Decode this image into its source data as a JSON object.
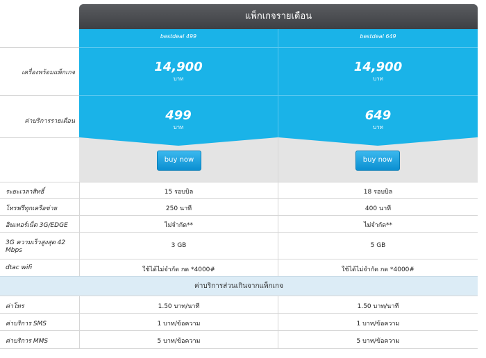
{
  "header": {
    "title": "แพ็กเกจรายเดือน"
  },
  "plans": [
    {
      "name": "bestdeal 499",
      "device_price": "14,900",
      "device_unit": "บาท",
      "monthly_price": "499",
      "monthly_unit": "บาท",
      "button": "buy now"
    },
    {
      "name": "bestdeal 649",
      "device_price": "14,900",
      "device_unit": "บาท",
      "monthly_price": "649",
      "monthly_unit": "บาท",
      "button": "buy now"
    }
  ],
  "labels": {
    "device_package": "เครื่องพร้อมแพ็กเกจ",
    "monthly_fee": "ค่าบริการรายเดือน"
  },
  "rows": [
    {
      "label": "ระยะเวลาสิทธิ์",
      "v1": "15 รอบบิล",
      "v2": "18 รอบบิล"
    },
    {
      "label": "โทรฟรีทุกเครือข่าย",
      "v1": "250 นาที",
      "v2": "400 นาที"
    },
    {
      "label": "อินเทอร์เน็ต 3G/EDGE",
      "v1": "ไม่จำกัด**",
      "v2": "ไม่จำกัด**"
    },
    {
      "label": "3G ความเร็วสูงสุด 42 Mbps",
      "v1": "3 GB",
      "v2": "5 GB"
    },
    {
      "label": "dtac wifi",
      "v1": "ใช้ได้ไม่จำกัด กด *4000#",
      "v2": "ใช้ได้ไม่จำกัด กด *4000#"
    }
  ],
  "section": {
    "title": "ค่าบริการส่วนเกินจากแพ็กเกจ"
  },
  "extra_rows": [
    {
      "label": "ค่าโทร",
      "v1": "1.50 บาท/นาที",
      "v2": "1.50 บาท/นาที"
    },
    {
      "label": "ค่าบริการ SMS",
      "v1": "1 บาท/ข้อความ",
      "v2": "1 บาท/ข้อความ"
    },
    {
      "label": "ค่าบริการ MMS",
      "v1": "5 บาท/ข้อความ",
      "v2": "5 บาท/ข้อความ"
    }
  ]
}
